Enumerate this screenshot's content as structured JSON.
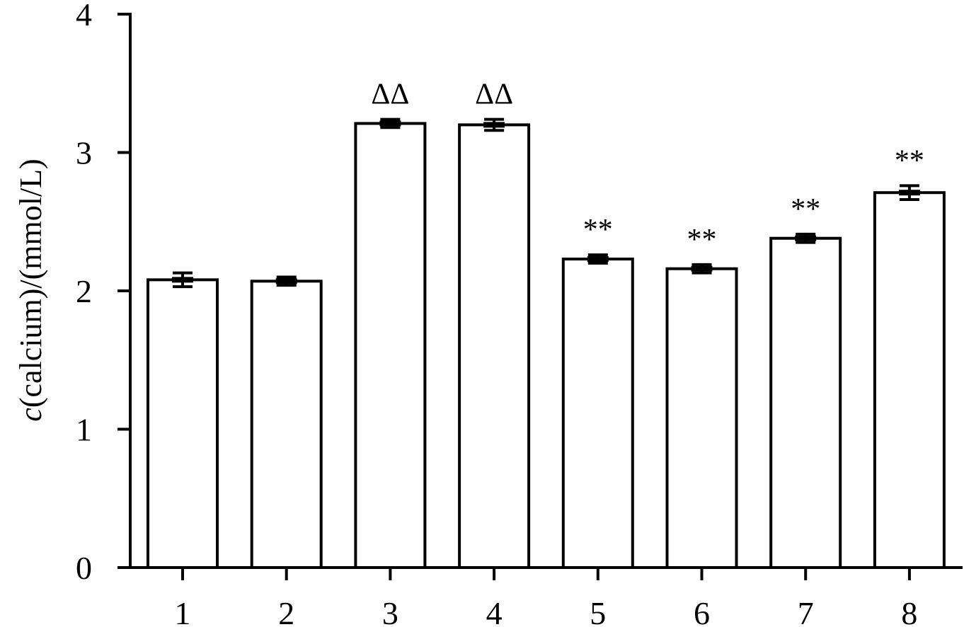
{
  "chart_data": {
    "type": "bar",
    "title": "",
    "xlabel": "",
    "ylabel_var": "c",
    "ylabel_rest": "(calcium)/(mmol/L)",
    "ylim": [
      0,
      4
    ],
    "yticks": [
      "0",
      "1",
      "2",
      "3",
      "4"
    ],
    "categories": [
      "1",
      "2",
      "3",
      "4",
      "5",
      "6",
      "7",
      "8"
    ],
    "values": [
      2.08,
      2.07,
      3.21,
      3.2,
      2.23,
      2.16,
      2.38,
      2.71
    ],
    "errors": [
      0.05,
      0.03,
      0.03,
      0.04,
      0.03,
      0.03,
      0.03,
      0.05
    ],
    "annotations": [
      "",
      "",
      "ΔΔ",
      "ΔΔ",
      "**",
      "**",
      "**",
      "**"
    ],
    "grid": false,
    "legend": "none"
  }
}
